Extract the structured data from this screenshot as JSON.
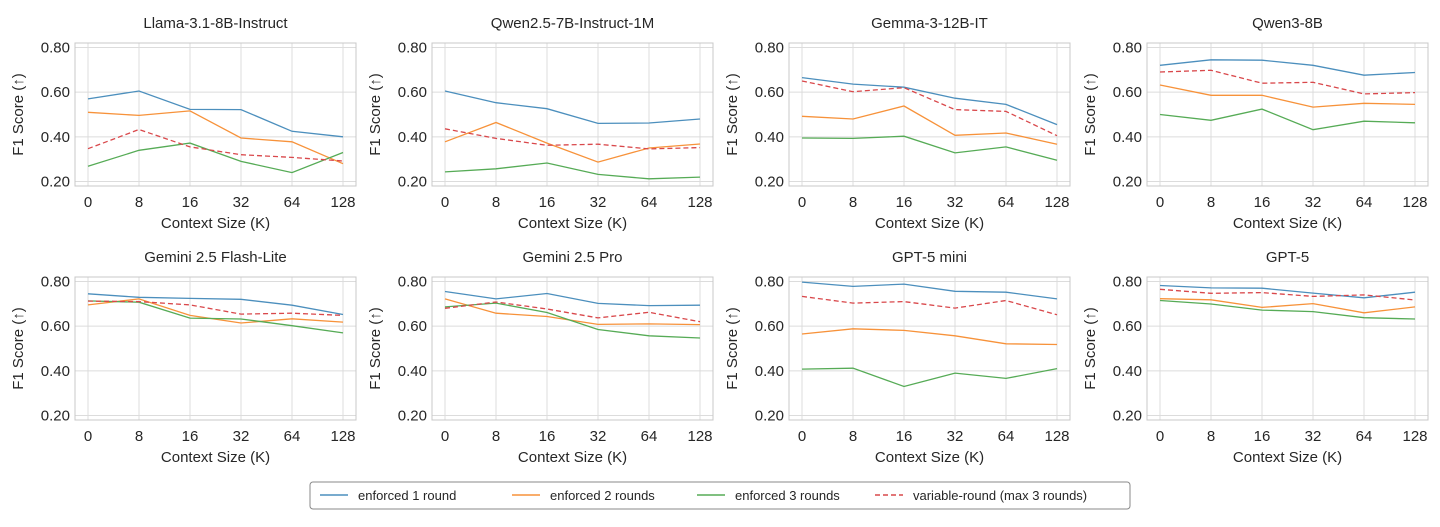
{
  "chart_data": {
    "type": "line",
    "x_tick_labels": [
      "0",
      "8",
      "16",
      "32",
      "64",
      "128"
    ],
    "xlabel": "Context Size (K)",
    "ylabel": "F1 Score (↑)",
    "ylim": [
      0.18,
      0.82
    ],
    "y_ticks": [
      0.2,
      0.4,
      0.6,
      0.8
    ],
    "y_tick_labels": [
      "0.20",
      "0.40",
      "0.60",
      "0.80"
    ],
    "grid": true,
    "legend_position": "bottom-center",
    "legend": [
      {
        "name": "enforced 1 round",
        "color": "#4c8fbd",
        "dash": "solid"
      },
      {
        "name": "enforced 2 rounds",
        "color": "#f7923a",
        "dash": "solid"
      },
      {
        "name": "enforced 3 rounds",
        "color": "#56ab56",
        "dash": "solid"
      },
      {
        "name": "variable-round (max 3 rounds)",
        "color": "#d9484b",
        "dash": "dashed"
      }
    ],
    "panels": [
      {
        "title": "Llama-3.1-8B-Instruct",
        "series": [
          [
            0.57,
            0.605,
            0.523,
            0.522,
            0.425,
            0.4
          ],
          [
            0.51,
            0.496,
            0.516,
            0.395,
            0.378,
            0.28
          ],
          [
            0.268,
            0.34,
            0.372,
            0.29,
            0.24,
            0.33
          ],
          [
            0.347,
            0.433,
            0.355,
            0.32,
            0.308,
            0.292
          ]
        ]
      },
      {
        "title": "Qwen2.5-7B-Instruct-1M",
        "series": [
          [
            0.605,
            0.553,
            0.526,
            0.46,
            0.462,
            0.48
          ],
          [
            0.378,
            0.464,
            0.372,
            0.287,
            0.35,
            0.368
          ],
          [
            0.243,
            0.257,
            0.283,
            0.232,
            0.212,
            0.22
          ],
          [
            0.436,
            0.393,
            0.362,
            0.367,
            0.346,
            0.352
          ]
        ]
      },
      {
        "title": "Gemma-3-12B-IT",
        "series": [
          [
            0.665,
            0.636,
            0.622,
            0.573,
            0.545,
            0.455
          ],
          [
            0.492,
            0.48,
            0.538,
            0.407,
            0.417,
            0.367
          ],
          [
            0.395,
            0.393,
            0.403,
            0.328,
            0.355,
            0.295
          ],
          [
            0.65,
            0.602,
            0.62,
            0.522,
            0.514,
            0.405
          ]
        ]
      },
      {
        "title": "Qwen3-8B",
        "series": [
          [
            0.72,
            0.745,
            0.743,
            0.72,
            0.676,
            0.688
          ],
          [
            0.632,
            0.586,
            0.586,
            0.533,
            0.55,
            0.545
          ],
          [
            0.5,
            0.474,
            0.524,
            0.432,
            0.47,
            0.463
          ],
          [
            0.69,
            0.698,
            0.64,
            0.644,
            0.592,
            0.598
          ]
        ]
      },
      {
        "title": "Gemini 2.5 Flash-Lite",
        "series": [
          [
            0.745,
            0.729,
            0.724,
            0.72,
            0.694,
            0.652
          ],
          [
            0.695,
            0.722,
            0.648,
            0.614,
            0.633,
            0.618
          ],
          [
            0.713,
            0.707,
            0.636,
            0.632,
            0.602,
            0.57
          ],
          [
            0.712,
            0.71,
            0.695,
            0.654,
            0.658,
            0.648
          ]
        ]
      },
      {
        "title": "Gemini 2.5 Pro",
        "series": [
          [
            0.755,
            0.722,
            0.746,
            0.702,
            0.692,
            0.694
          ],
          [
            0.722,
            0.658,
            0.643,
            0.608,
            0.61,
            0.607
          ],
          [
            0.686,
            0.703,
            0.661,
            0.585,
            0.557,
            0.547
          ],
          [
            0.68,
            0.708,
            0.677,
            0.637,
            0.662,
            0.62
          ]
        ]
      },
      {
        "title": "GPT-5 mini",
        "series": [
          [
            0.797,
            0.778,
            0.788,
            0.756,
            0.752,
            0.722
          ],
          [
            0.565,
            0.588,
            0.581,
            0.557,
            0.521,
            0.518
          ],
          [
            0.408,
            0.412,
            0.33,
            0.39,
            0.366,
            0.41
          ],
          [
            0.733,
            0.703,
            0.71,
            0.681,
            0.715,
            0.651
          ]
        ]
      },
      {
        "title": "GPT-5",
        "series": [
          [
            0.782,
            0.771,
            0.77,
            0.748,
            0.727,
            0.752
          ],
          [
            0.723,
            0.718,
            0.684,
            0.701,
            0.66,
            0.686
          ],
          [
            0.715,
            0.699,
            0.672,
            0.665,
            0.638,
            0.632
          ],
          [
            0.765,
            0.747,
            0.75,
            0.733,
            0.74,
            0.717
          ]
        ]
      }
    ]
  }
}
